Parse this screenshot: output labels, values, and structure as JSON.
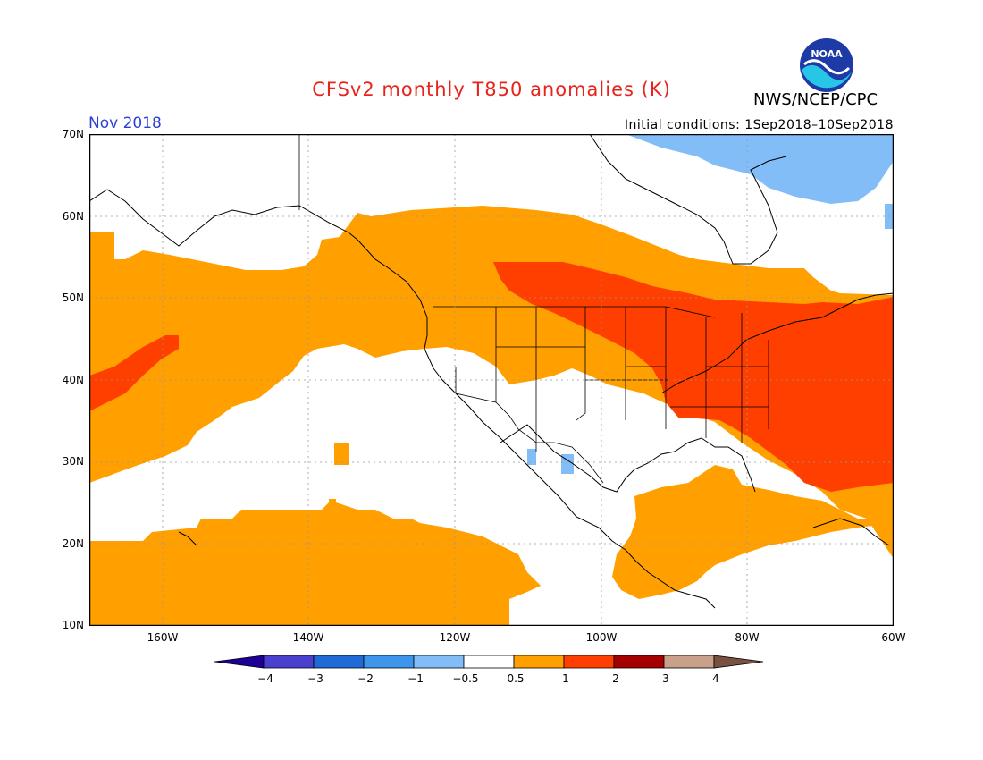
{
  "title": "CFSv2 monthly T850 anomalies (K)",
  "agency": "NWS/NCEP/CPC",
  "logo_text": "NOAA",
  "month": "Nov 2018",
  "initial_conditions": "Initial conditions: 1Sep2018–10Sep2018",
  "lat_labels": [
    "70N",
    "60N",
    "50N",
    "40N",
    "30N",
    "20N",
    "10N"
  ],
  "lon_labels": [
    "160W",
    "140W",
    "120W",
    "100W",
    "80W",
    "60W"
  ],
  "colorbar": {
    "labels": [
      "−4",
      "−3",
      "−2",
      "−1",
      "−0.5",
      "0.5",
      "1",
      "2",
      "3",
      "4"
    ],
    "colors": [
      "#1e0096",
      "#4b3fd0",
      "#1f6ad6",
      "#3e95ec",
      "#82bdf8",
      "#ffffff",
      "#ff9f00",
      "#ff3f00",
      "#a40000",
      "#c9a08a",
      "#7a5040"
    ]
  },
  "colors": {
    "title": "#e8231b",
    "month": "#2b3fd6",
    "warm1": "#ff9f00",
    "warm2": "#ff3f00",
    "cool1": "#82bdf8"
  },
  "map_extent": {
    "lon_min": -170,
    "lon_max": -60,
    "lat_min": 10,
    "lat_max": 70
  },
  "anomaly_regions": [
    {
      "name": "Warm north Pacific / Alaska",
      "category": "0.5 to 1"
    },
    {
      "name": "Warm central Pacific band",
      "category": "1 to 2"
    },
    {
      "name": "Warm Canada and eastern Pacific coast",
      "category": "0.5 to 1"
    },
    {
      "name": "Warm Great Lakes and eastern US",
      "category": "1 to 2"
    },
    {
      "name": "Warm tropical Pacific / Central America",
      "category": "0.5 to 1"
    },
    {
      "name": "Cool northeastern Canada",
      "category": "-1 to -0.5"
    }
  ]
}
